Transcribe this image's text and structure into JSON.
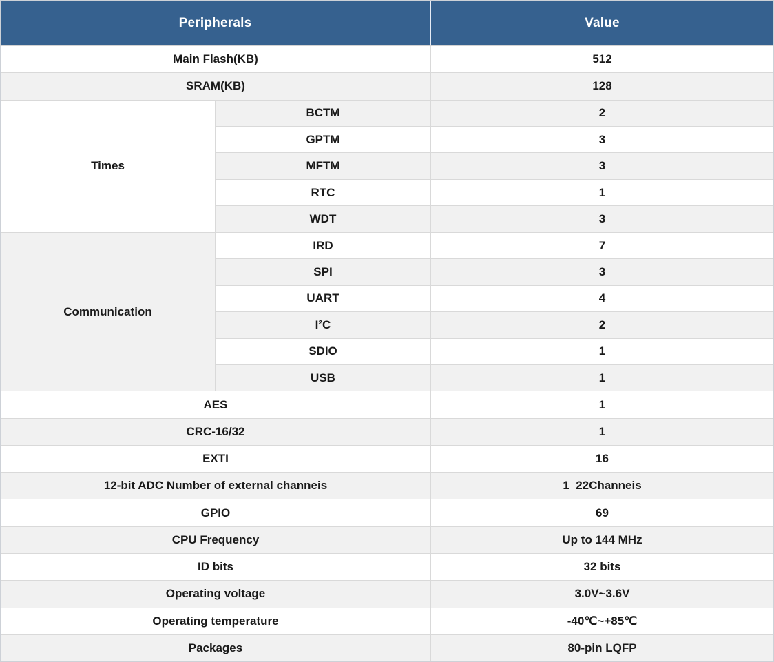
{
  "header": {
    "peripherals": "Peripherals",
    "value": "Value"
  },
  "colors": {
    "header_bg": "#36618f",
    "header_text": "#ffffff",
    "stripe": "#f1f1f1",
    "border": "#d9d9d9",
    "text": "#1a1a1a"
  },
  "sections": [
    {
      "type": "simple",
      "label": "Main Flash(KB)",
      "value": "512",
      "shaded": false
    },
    {
      "type": "simple",
      "label": "SRAM(KB)",
      "value": "128",
      "shaded": true
    },
    {
      "type": "group",
      "label": "Times",
      "label_shaded": false,
      "items": [
        {
          "label": "BCTM",
          "value": "2",
          "shaded": true
        },
        {
          "label": "GPTM",
          "value": "3",
          "shaded": false
        },
        {
          "label": "MFTM",
          "value": "3",
          "shaded": true
        },
        {
          "label": "RTC",
          "value": "1",
          "shaded": false
        },
        {
          "label": "WDT",
          "value": "3",
          "shaded": true
        }
      ]
    },
    {
      "type": "group",
      "label": "Communication",
      "label_shaded": true,
      "items": [
        {
          "label": "IRD",
          "value": "7",
          "shaded": false
        },
        {
          "label": "SPI",
          "value": "3",
          "shaded": true
        },
        {
          "label": "UART",
          "value": "4",
          "shaded": false
        },
        {
          "label": "I²C",
          "value": "2",
          "shaded": true
        },
        {
          "label": "SDIO",
          "value": "1",
          "shaded": false
        },
        {
          "label": "USB",
          "value": "1",
          "shaded": true
        }
      ]
    },
    {
      "type": "simple",
      "label": "AES",
      "value": "1",
      "shaded": false
    },
    {
      "type": "simple",
      "label": "CRC-16/32",
      "value": "1",
      "shaded": true
    },
    {
      "type": "simple",
      "label": "EXTI",
      "value": "16",
      "shaded": false
    },
    {
      "type": "simple",
      "label": "12-bit ADC Number of external channeis",
      "value": "1  22Channeis",
      "shaded": true
    },
    {
      "type": "simple",
      "label": "GPIO",
      "value": "69",
      "shaded": false
    },
    {
      "type": "simple",
      "label": "CPU Frequency",
      "value": "Up to 144 MHz",
      "shaded": true
    },
    {
      "type": "simple",
      "label": "ID bits",
      "value": "32 bits",
      "shaded": false
    },
    {
      "type": "simple",
      "label": "Operating voltage",
      "value": "3.0V~3.6V",
      "shaded": true
    },
    {
      "type": "simple",
      "label": "Operating temperature",
      "value": "-40℃~+85℃",
      "shaded": false
    },
    {
      "type": "simple",
      "label": "Packages",
      "value": "80-pin LQFP",
      "shaded": true
    }
  ]
}
